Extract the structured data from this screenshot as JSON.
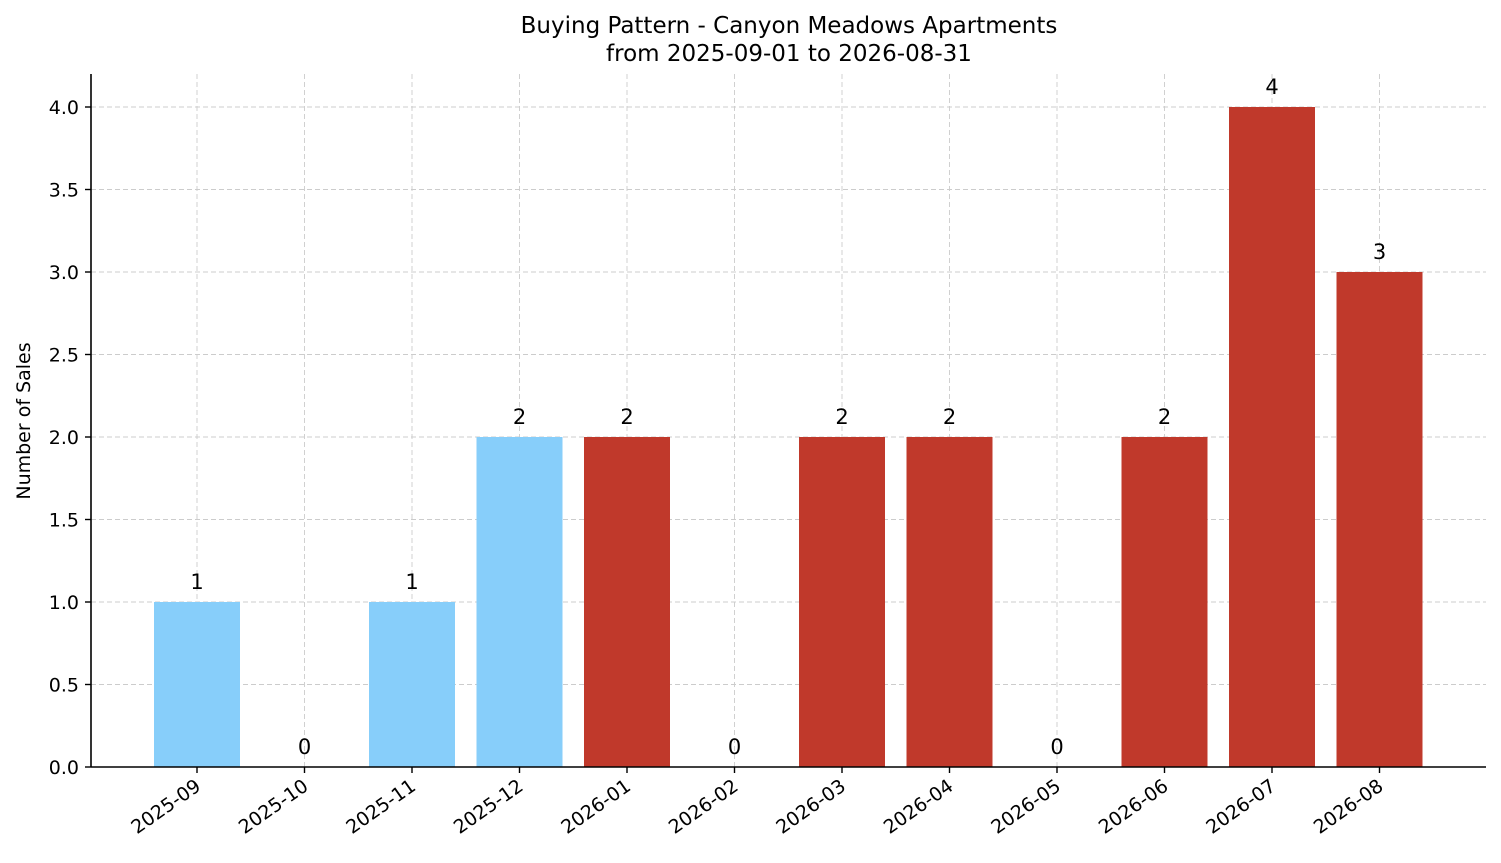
{
  "chart_data": {
    "type": "bar",
    "title": "Buying Pattern - Canyon Meadows Apartments",
    "subtitle": "from 2025-09-01 to 2026-08-31",
    "xlabel": "",
    "ylabel": "Number of Sales",
    "categories": [
      "2025-09",
      "2025-10",
      "2025-11",
      "2025-12",
      "2026-01",
      "2026-02",
      "2026-03",
      "2026-04",
      "2026-05",
      "2026-06",
      "2026-07",
      "2026-08"
    ],
    "values": [
      1,
      0,
      1,
      2,
      2,
      0,
      2,
      2,
      0,
      2,
      4,
      3
    ],
    "data_labels": [
      "1",
      "0",
      "1",
      "2",
      "2",
      "0",
      "2",
      "2",
      "0",
      "2",
      "4",
      "3"
    ],
    "yticks": [
      "0.0",
      "0.5",
      "1.0",
      "1.5",
      "2.0",
      "2.5",
      "3.0",
      "3.5",
      "4.0"
    ],
    "ylim": [
      0,
      4.2
    ],
    "grid": true,
    "bar_colors": [
      "#87CEFA",
      "#87CEFA",
      "#87CEFA",
      "#87CEFA",
      "#C0392B",
      "#C0392B",
      "#C0392B",
      "#C0392B",
      "#C0392B",
      "#C0392B",
      "#C0392B",
      "#C0392B"
    ]
  }
}
